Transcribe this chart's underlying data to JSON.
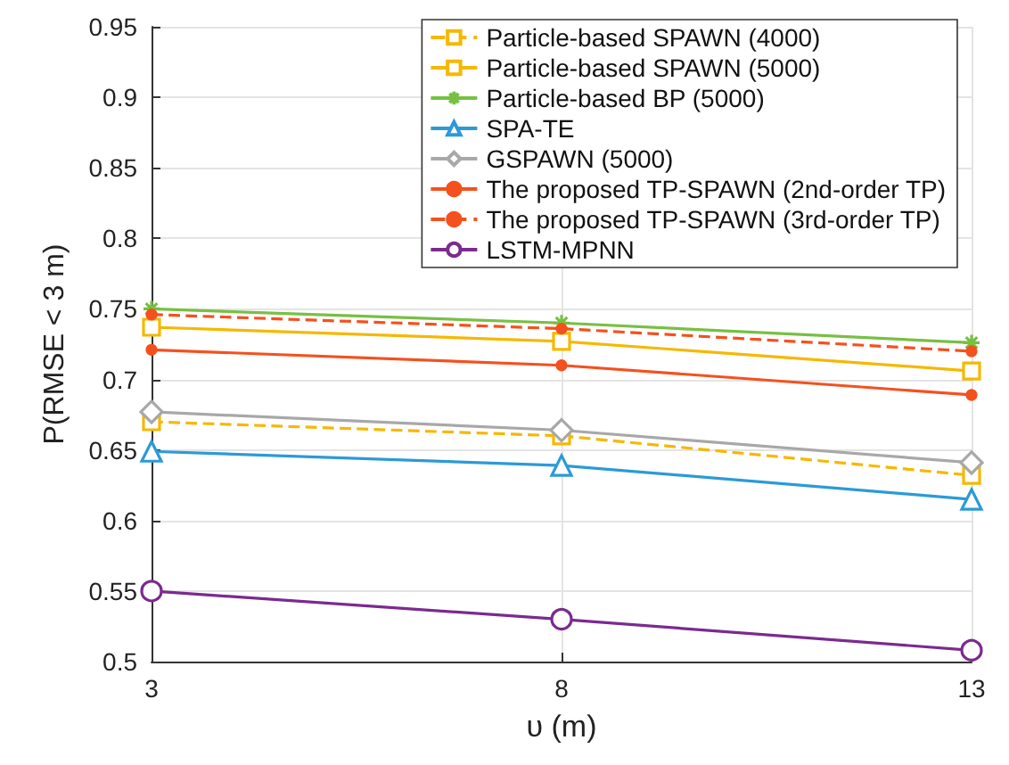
{
  "chart_data": {
    "type": "line",
    "xlabel": "υ (m)",
    "ylabel": "P(RMSE < 3 m)",
    "x": [
      3,
      8,
      13
    ],
    "xlim": [
      3,
      13
    ],
    "xticks": [
      3,
      8,
      13
    ],
    "ylim": [
      0.5,
      0.95
    ],
    "yticks": [
      0.5,
      0.55,
      0.6,
      0.65,
      0.7,
      0.75,
      0.8,
      0.85,
      0.9,
      0.95
    ],
    "grid": true,
    "legend": "top right",
    "series": [
      {
        "name": "Particle-based SPAWN (4000)",
        "color": "#f5b800",
        "marker": "square",
        "line_style": "dashed",
        "values": [
          0.67,
          0.66,
          0.632
        ]
      },
      {
        "name": "Particle-based SPAWN (5000)",
        "color": "#f5b800",
        "marker": "square",
        "line_style": "solid",
        "values": [
          0.737,
          0.727,
          0.706
        ]
      },
      {
        "name": "Particle-based BP (5000)",
        "color": "#77c043",
        "marker": "cross",
        "line_style": "solid",
        "values": [
          0.75,
          0.74,
          0.726
        ]
      },
      {
        "name": "SPA-TE",
        "color": "#2b9ad8",
        "marker": "triangle",
        "line_style": "solid",
        "values": [
          0.649,
          0.639,
          0.615
        ]
      },
      {
        "name": "GSPAWN (5000)",
        "color": "#a8a8a8",
        "marker": "diamond",
        "line_style": "solid",
        "values": [
          0.677,
          0.664,
          0.641
        ]
      },
      {
        "name": "The proposed TP-SPAWN (2nd-order TP)",
        "color": "#f4511e",
        "marker": "circle",
        "line_style": "solid",
        "values": [
          0.721,
          0.71,
          0.689
        ]
      },
      {
        "name": "The proposed TP-SPAWN (3rd-order TP)",
        "color": "#f4511e",
        "marker": "circle",
        "line_style": "dashed",
        "values": [
          0.746,
          0.736,
          0.72
        ]
      },
      {
        "name": "LSTM-MPNN",
        "color": "#7b2a90",
        "marker": "circle",
        "line_style": "solid",
        "values": [
          0.55,
          0.53,
          0.508
        ]
      }
    ]
  }
}
